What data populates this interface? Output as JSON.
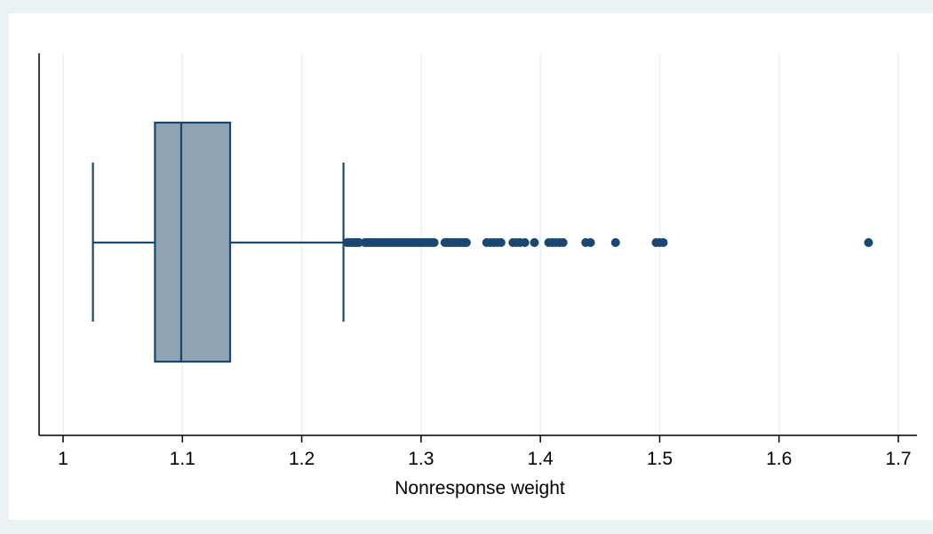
{
  "chart_data": {
    "type": "box",
    "orientation": "horizontal",
    "title": "",
    "xlabel": "Nonresponse weight",
    "ylabel": "",
    "xlim": [
      0.98,
      1.72
    ],
    "xticks": [
      1,
      1.1,
      1.2,
      1.3,
      1.4,
      1.5,
      1.6,
      1.7
    ],
    "xtick_labels": [
      "1",
      "1.1",
      "1.2",
      "1.3",
      "1.4",
      "1.5",
      "1.6",
      "1.7"
    ],
    "grid": "vertical",
    "legend": "none",
    "box": {
      "whisker_low": 1.025,
      "q1": 1.077,
      "median": 1.099,
      "q3": 1.14,
      "whisker_high": 1.235
    },
    "outliers": [
      1.238,
      1.24,
      1.242,
      1.244,
      1.246,
      1.248,
      1.253,
      1.255,
      1.257,
      1.259,
      1.261,
      1.263,
      1.265,
      1.267,
      1.269,
      1.271,
      1.273,
      1.275,
      1.277,
      1.279,
      1.281,
      1.283,
      1.285,
      1.287,
      1.289,
      1.291,
      1.293,
      1.295,
      1.297,
      1.299,
      1.301,
      1.303,
      1.305,
      1.307,
      1.309,
      1.311,
      1.32,
      1.322,
      1.324,
      1.326,
      1.328,
      1.33,
      1.332,
      1.334,
      1.336,
      1.338,
      1.355,
      1.358,
      1.361,
      1.364,
      1.367,
      1.377,
      1.38,
      1.383,
      1.387,
      1.395,
      1.407,
      1.41,
      1.413,
      1.416,
      1.419,
      1.438,
      1.442,
      1.463,
      1.497,
      1.5,
      1.503,
      1.675
    ],
    "colors": {
      "box_fill": "#8ea3b4",
      "line": "#1a476f",
      "marker": "#1a476f",
      "grid": "#eaf2f3",
      "plot_bg": "#ffffff",
      "outer_bg": "#eaf2f3"
    }
  }
}
